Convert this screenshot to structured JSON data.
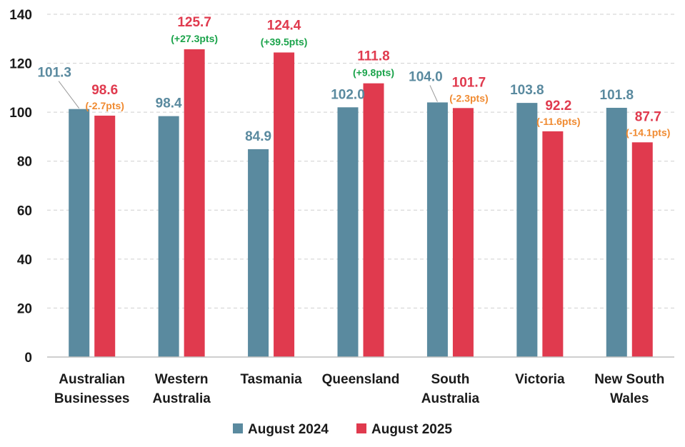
{
  "chart_data": {
    "type": "bar",
    "categories": [
      [
        "Australian",
        "Businesses"
      ],
      [
        "Western",
        "Australia"
      ],
      [
        "Tasmania"
      ],
      [
        "Queensland"
      ],
      [
        "South",
        "Australia"
      ],
      [
        "Victoria"
      ],
      [
        "New South",
        "Wales"
      ]
    ],
    "series": [
      {
        "name": "August 2024",
        "color": "#5a8a9f",
        "values": [
          101.3,
          98.4,
          84.9,
          102.0,
          104.0,
          103.8,
          101.8
        ]
      },
      {
        "name": "August 2025",
        "color": "#e03a4e",
        "values": [
          98.6,
          125.7,
          124.4,
          111.8,
          101.7,
          92.2,
          87.7
        ]
      }
    ],
    "value_labels_2024": [
      "101.3",
      "98.4",
      "84.9",
      "102.0",
      "104.0",
      "103.8",
      "101.8"
    ],
    "value_labels_2025": [
      "98.6",
      "125.7",
      "124.4",
      "111.8",
      "101.7",
      "92.2",
      "87.7"
    ],
    "change_labels": [
      "(-2.7pts)",
      "(+27.3pts)",
      "(+39.5pts)",
      "(+9.8pts)",
      "(-2.3pts)",
      "(-11.6pts)",
      "(-14.1pts)"
    ],
    "change_colors": {
      "positive": "#1aa34a",
      "negative": "#f08a30"
    },
    "yticks": [
      0,
      20,
      40,
      60,
      80,
      100,
      120,
      140
    ],
    "ylim": [
      0,
      140
    ],
    "grid": true,
    "legend": "bottom",
    "title": "",
    "xlabel": "",
    "ylabel": ""
  }
}
